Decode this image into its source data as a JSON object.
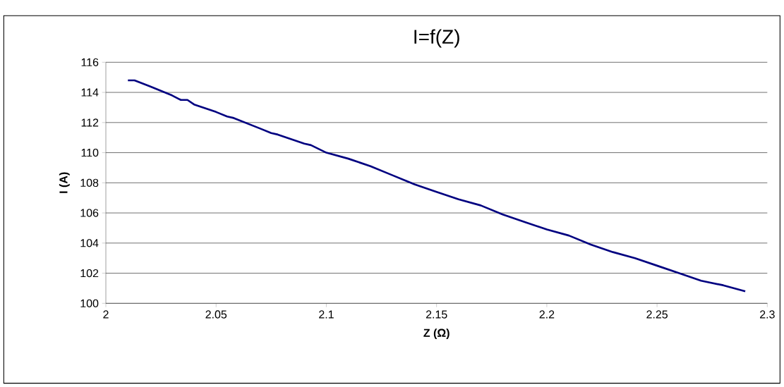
{
  "chart_data": {
    "type": "line",
    "title": "I=f(Z)",
    "xlabel": "Z (Ω)",
    "ylabel": "I (A)",
    "x": [
      2.01,
      2.013,
      2.02,
      2.03,
      2.034,
      2.037,
      2.04,
      2.05,
      2.055,
      2.058,
      2.07,
      2.075,
      2.078,
      2.09,
      2.093,
      2.1,
      2.11,
      2.12,
      2.13,
      2.14,
      2.15,
      2.16,
      2.17,
      2.18,
      2.19,
      2.2,
      2.21,
      2.22,
      2.23,
      2.24,
      2.25,
      2.26,
      2.27,
      2.28,
      2.29
    ],
    "series": [
      {
        "color": "#000080",
        "values": [
          114.8,
          114.8,
          114.4,
          113.8,
          113.5,
          113.5,
          113.2,
          112.7,
          112.4,
          112.3,
          111.6,
          111.3,
          111.2,
          110.6,
          110.5,
          110.0,
          109.6,
          109.1,
          108.5,
          107.9,
          107.4,
          106.9,
          106.5,
          105.9,
          105.4,
          104.9,
          104.5,
          103.9,
          103.4,
          103.0,
          102.5,
          102.0,
          101.5,
          101.2,
          100.8
        ]
      }
    ],
    "xlim": [
      2,
      2.3
    ],
    "xticks": [
      2,
      2.05,
      2.1,
      2.15,
      2.2,
      2.25,
      2.3
    ],
    "ylim": [
      100,
      116
    ],
    "yticks": [
      100,
      102,
      104,
      106,
      108,
      110,
      112,
      114,
      116
    ],
    "grid": "y",
    "marker": "none",
    "line_style": "solid"
  }
}
